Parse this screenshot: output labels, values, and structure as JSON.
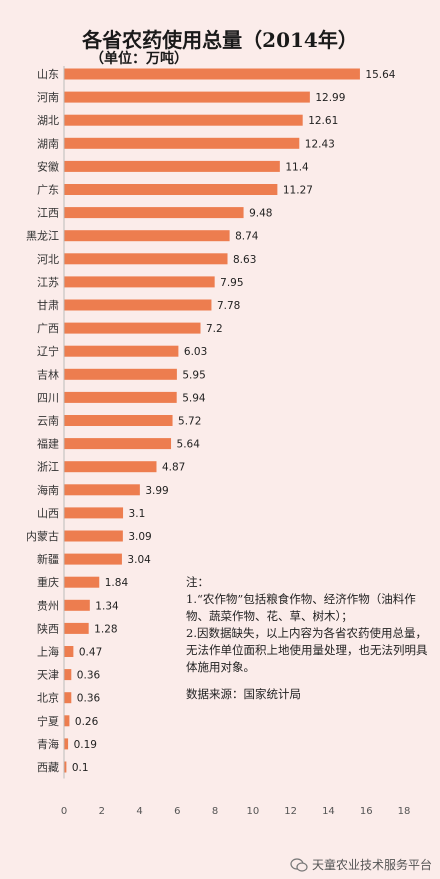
{
  "header": {
    "title": "各省农药使用总量（2014年）",
    "subtitle": "（单位：万吨）"
  },
  "notes": {
    "heading": "注：",
    "item1": "1.“农作物”包括粮食作物、经济作物（油料作物、蔬菜作物、花、草、树木）；",
    "item2": "2.因数据缺失，以上内容为各省农药使用总量，无法作单位面积上地使用量处理，也无法列明具体施用对象。",
    "source": "数据来源：国家统计局"
  },
  "footer": {
    "account": "天童农业技术服务平台"
  },
  "colors": {
    "bar": "#ed7d4f",
    "background": "#fbecea"
  },
  "chart_data": {
    "type": "bar",
    "orientation": "horizontal",
    "title": "各省农药使用总量（2014年）",
    "subtitle": "（单位：万吨）",
    "xlabel": "",
    "ylabel": "",
    "xlim": [
      0,
      18
    ],
    "xticks": [
      0,
      2,
      4,
      6,
      8,
      10,
      12,
      14,
      16,
      18
    ],
    "grid": false,
    "categories": [
      "山东",
      "河南",
      "湖北",
      "湖南",
      "安徽",
      "广东",
      "江西",
      "黑龙江",
      "河北",
      "江苏",
      "甘肃",
      "广西",
      "辽宁",
      "吉林",
      "四川",
      "云南",
      "福建",
      "浙江",
      "海南",
      "山西",
      "内蒙古",
      "新疆",
      "重庆",
      "贵州",
      "陕西",
      "上海",
      "天津",
      "北京",
      "宁夏",
      "青海",
      "西藏"
    ],
    "values": [
      15.64,
      12.99,
      12.61,
      12.43,
      11.4,
      11.27,
      9.48,
      8.74,
      8.63,
      7.95,
      7.78,
      7.2,
      6.03,
      5.95,
      5.94,
      5.72,
      5.64,
      4.87,
      3.99,
      3.1,
      3.09,
      3.04,
      1.84,
      1.34,
      1.28,
      0.47,
      0.36,
      0.36,
      0.26,
      0.19,
      0.1
    ],
    "value_labels": [
      "15.64",
      "12.99",
      "12.61",
      "12.43",
      "11.4",
      "11.27",
      "9.48",
      "8.74",
      "8.63",
      "7.95",
      "7.78",
      "7.2",
      "6.03",
      "5.95",
      "5.94",
      "5.72",
      "5.64",
      "4.87",
      "3.99",
      "3.1",
      "3.09",
      "3.04",
      "1.84",
      "1.34",
      "1.28",
      "0.47",
      "0.36",
      "0.36",
      "0.26",
      "0.19",
      "0.1"
    ]
  }
}
